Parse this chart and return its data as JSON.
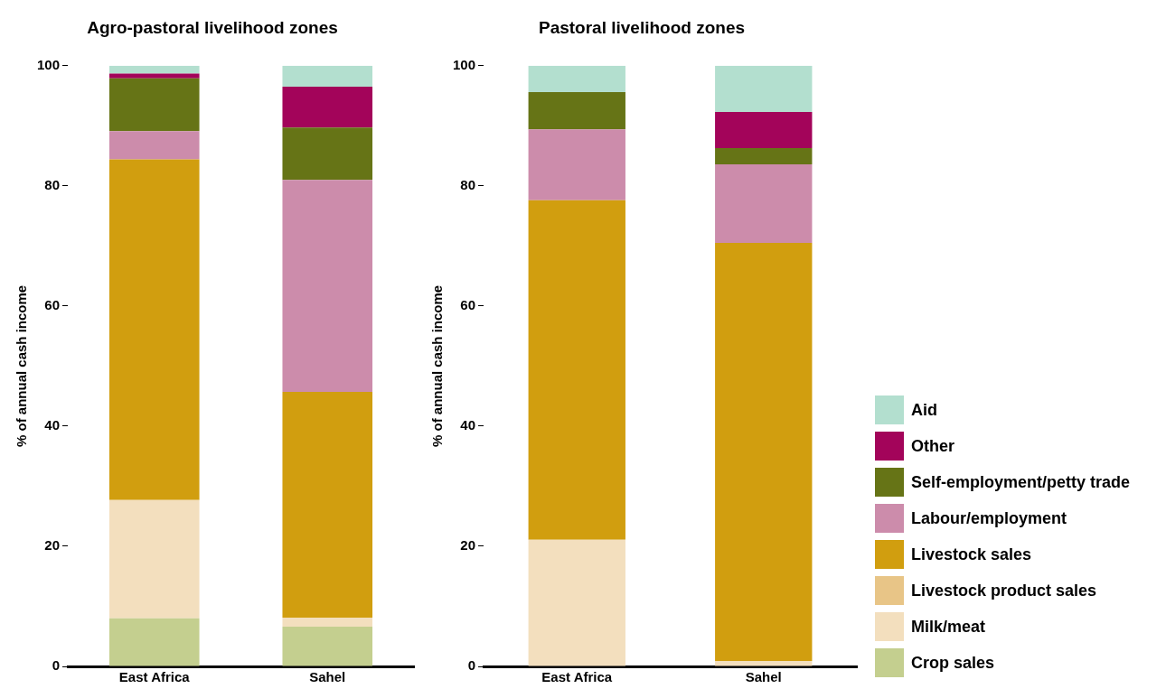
{
  "chart_data": [
    {
      "type": "bar",
      "stacked": true,
      "title": "Agro-pastoral livelihood zones",
      "ylabel": "% of annual cash income",
      "categories": [
        "East Africa",
        "Sahel"
      ],
      "ylim": [
        0,
        100
      ],
      "yticks": [
        0,
        20,
        40,
        60,
        80,
        100
      ],
      "grid": false,
      "legend": false,
      "series": [
        {
          "color": "#c4cf8f",
          "values": [
            8,
            6.6
          ]
        },
        {
          "color": "#f3dfbe",
          "values": [
            19.7,
            1.5
          ]
        },
        {
          "color": "#e8c587",
          "values": [
            0,
            0
          ]
        },
        {
          "color": "#d19e0f",
          "values": [
            56.7,
            37.6
          ]
        },
        {
          "color": "#cc8cab",
          "values": [
            4.7,
            35.3
          ]
        },
        {
          "color": "#667416",
          "values": [
            8.8,
            8.7
          ]
        },
        {
          "color": "#a3045a",
          "values": [
            0.8,
            6.8
          ]
        },
        {
          "color": "#b3dfcf",
          "values": [
            1.3,
            3.5
          ]
        }
      ]
    },
    {
      "type": "bar",
      "stacked": true,
      "title": "Pastoral livelihood zones",
      "ylabel": "% of annual cash income",
      "categories": [
        "East Africa",
        "Sahel"
      ],
      "ylim": [
        0,
        100
      ],
      "yticks": [
        0,
        20,
        40,
        60,
        80,
        100
      ],
      "grid": false,
      "legend": "bottom right",
      "series": [
        {
          "name": "Crop sales",
          "color": "#c4cf8f",
          "values": [
            0,
            0
          ]
        },
        {
          "name": "Milk/meat",
          "color": "#f3dfbe",
          "values": [
            21.1,
            0.9
          ]
        },
        {
          "name": "Livestock product sales",
          "color": "#e8c587",
          "values": [
            0,
            0
          ]
        },
        {
          "name": "Livestock sales",
          "color": "#d19e0f",
          "values": [
            56.5,
            69.6
          ]
        },
        {
          "name": "Labour/employment",
          "color": "#cc8cab",
          "values": [
            11.8,
            13.1
          ]
        },
        {
          "name": "Self-employment/petty trade",
          "color": "#667416",
          "values": [
            6.2,
            2.7
          ]
        },
        {
          "name": "Other",
          "color": "#a3045a",
          "values": [
            0,
            6
          ]
        },
        {
          "name": "Aid",
          "color": "#b3dfcf",
          "values": [
            4.4,
            7.7
          ]
        }
      ]
    }
  ]
}
